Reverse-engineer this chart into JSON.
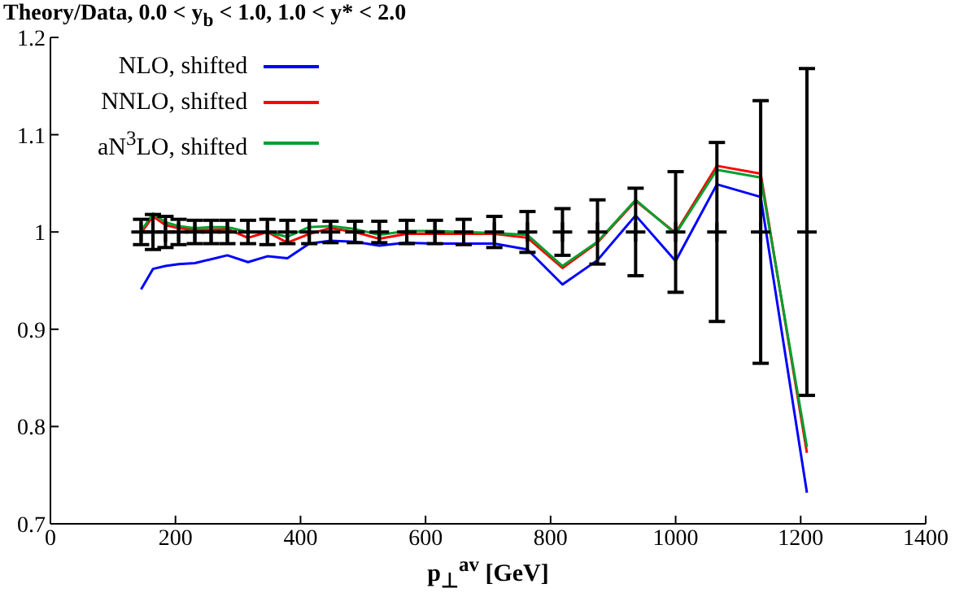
{
  "chart_data": {
    "type": "line",
    "title": "Theory/Data, 0.0 < y$_{b}$ < 1.0, 1.0 < y* < 2.0",
    "xlabel": "p$_{⊥}$$^{av}$ [GeV]",
    "x": [
      145,
      164,
      184,
      205,
      231,
      257,
      283,
      316,
      347,
      379,
      414,
      448,
      487,
      526,
      570,
      615,
      661,
      710,
      763,
      819,
      875,
      936,
      1000,
      1066,
      1136,
      1210
    ],
    "series": [
      {
        "type": "scatter",
        "color": "#000000",
        "marker": "cross",
        "values": [
          1,
          1,
          1,
          1,
          1,
          1,
          1,
          1,
          1,
          1,
          1,
          1,
          1,
          1,
          1,
          1,
          1,
          1,
          1,
          1,
          1,
          1,
          1,
          1,
          1,
          1
        ],
        "errors": [
          0.013,
          0.018,
          0.016,
          0.013,
          0.012,
          0.012,
          0.012,
          0.012,
          0.013,
          0.012,
          0.012,
          0.011,
          0.011,
          0.011,
          0.012,
          0.012,
          0.013,
          0.016,
          0.021,
          0.024,
          0.033,
          0.045,
          0.062,
          0.092,
          0.135,
          0.168
        ]
      },
      {
        "name": "NLO, shifted",
        "color": "#0000ff",
        "values": [
          0.941,
          0.962,
          0.965,
          0.967,
          0.968,
          0.972,
          0.976,
          0.969,
          0.975,
          0.973,
          0.988,
          0.991,
          0.99,
          0.986,
          0.989,
          0.988,
          0.988,
          0.988,
          0.982,
          0.946,
          0.971,
          1.017,
          0.97,
          1.049,
          1.036,
          0.732
        ]
      },
      {
        "name": "NNLO, shifted",
        "color": "#ff0000",
        "values": [
          0.999,
          1.016,
          1.007,
          1.004,
          1.002,
          1.002,
          1.003,
          0.994,
          1.0,
          0.989,
          0.998,
          1.004,
          1.0,
          0.993,
          0.998,
          0.998,
          0.998,
          0.998,
          0.994,
          0.963,
          0.989,
          1.032,
          0.999,
          1.068,
          1.06,
          0.773
        ]
      },
      {
        "name": "aN$^{3}$LO, shifted",
        "color": "#00a030",
        "values": [
          1.001,
          1.019,
          1.01,
          1.006,
          1.004,
          1.005,
          1.005,
          1.0,
          1.0,
          0.995,
          1.005,
          1.006,
          1.003,
          0.997,
          1.001,
          1.001,
          1.0,
          0.999,
          0.997,
          0.965,
          0.99,
          1.033,
          0.998,
          1.064,
          1.056,
          0.779
        ]
      }
    ],
    "xlim": [
      0,
      1400
    ],
    "xticks": [
      0,
      200,
      400,
      600,
      800,
      1000,
      1200,
      1400
    ],
    "ylim": [
      0.7,
      1.2
    ],
    "yticks": [
      0.7,
      0.8,
      0.9,
      1,
      1.1,
      1.2
    ],
    "grid": false,
    "legend": "top left",
    "marker": "none",
    "line_style": "solid"
  }
}
